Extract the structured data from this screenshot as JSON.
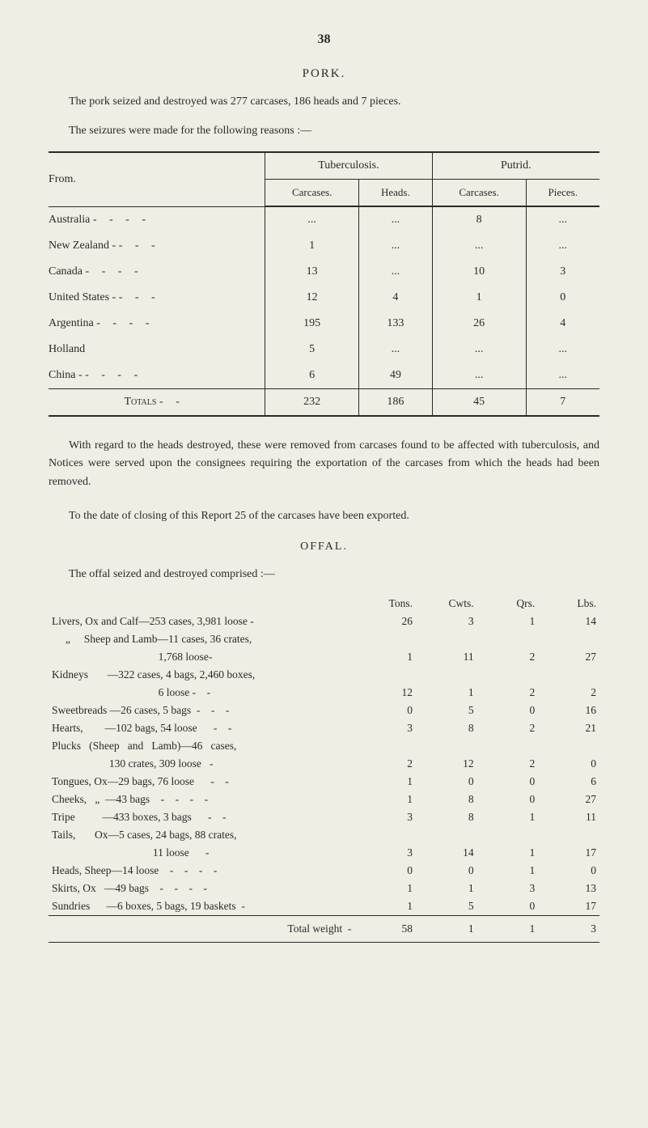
{
  "page_number": "38",
  "section_title": "PORK.",
  "intro_1": "The pork seized and destroyed was 277 carcases, 186 heads and 7 pieces.",
  "intro_2": "The seizures were made for the following reasons :—",
  "seizure_table": {
    "from_label": "From.",
    "group_headers": [
      "Tuberculosis.",
      "Putrid."
    ],
    "sub_headers": [
      "Carcases.",
      "Heads.",
      "Carcases.",
      "Pieces."
    ],
    "rows": [
      {
        "from": "Australia",
        "dashes": "-   -   -   -",
        "tb_c": "...",
        "tb_h": "...",
        "p_c": "8",
        "p_p": "..."
      },
      {
        "from": "New Zealand -",
        "dashes": "-   -   -",
        "tb_c": "1",
        "tb_h": "...",
        "p_c": "...",
        "p_p": "..."
      },
      {
        "from": "Canada",
        "dashes": "-   -   -   -",
        "tb_c": "13",
        "tb_h": "...",
        "p_c": "10",
        "p_p": "3"
      },
      {
        "from": "United States -",
        "dashes": "-   -   -",
        "tb_c": "12",
        "tb_h": "4",
        "p_c": "1",
        "p_p": "0"
      },
      {
        "from": "Argentina",
        "dashes": "-   -   -   -",
        "tb_c": "195",
        "tb_h": "133",
        "p_c": "26",
        "p_p": "4"
      },
      {
        "from": "Holland",
        "dashes": "",
        "tb_c": "5",
        "tb_h": "...",
        "p_c": "...",
        "p_p": "..."
      },
      {
        "from": "China -",
        "dashes": "-   -   -   -",
        "tb_c": "6",
        "tb_h": "49",
        "p_c": "...",
        "p_p": "..."
      }
    ],
    "totals_label": "Totals",
    "totals_dashes": "-   -",
    "totals": {
      "tb_c": "232",
      "tb_h": "186",
      "p_c": "45",
      "p_p": "7"
    }
  },
  "body_1": "With regard to the heads destroyed, these were removed from carcases found to be affected with tuberculosis, and Notices were served upon the consignees requiring the exportation of the carcases from which the heads had been removed.",
  "body_2": "To the date of closing of this Report 25 of the carcases have been exported.",
  "offal_title": "OFFAL.",
  "offal_intro": "The offal seized and destroyed comprised :—",
  "offal_headers": [
    "Tons.",
    "Cwts.",
    "Qrs.",
    "Lbs."
  ],
  "offal_rows": [
    {
      "desc": "Livers, Ox and Calf—253 cases, 3,981 loose -",
      "t": "26",
      "c": "3",
      "q": "1",
      "l": "14"
    },
    {
      "desc": "     „     Sheep and Lamb—11 cases, 36 crates,",
      "t": "",
      "c": "",
      "q": "",
      "l": ""
    },
    {
      "desc": "                                       1,768 loose-",
      "t": "1",
      "c": "11",
      "q": "2",
      "l": "27"
    },
    {
      "desc": "Kidneys       —322 cases, 4 bags, 2,460 boxes,",
      "t": "",
      "c": "",
      "q": "",
      "l": ""
    },
    {
      "desc": "                                       6 loose -    -",
      "t": "12",
      "c": "1",
      "q": "2",
      "l": "2"
    },
    {
      "desc": "Sweetbreads —26 cases, 5 bags  -    -    -",
      "t": "0",
      "c": "5",
      "q": "0",
      "l": "16"
    },
    {
      "desc": "Hearts,        —102 bags, 54 loose      -    -",
      "t": "3",
      "c": "8",
      "q": "2",
      "l": "21"
    },
    {
      "desc": "Plucks   (Sheep   and   Lamb)—46   cases,",
      "t": "",
      "c": "",
      "q": "",
      "l": ""
    },
    {
      "desc": "                     130 crates, 309 loose   -",
      "t": "2",
      "c": "12",
      "q": "2",
      "l": "0"
    },
    {
      "desc": "Tongues, Ox—29 bags, 76 loose      -    -",
      "t": "1",
      "c": "0",
      "q": "0",
      "l": "6"
    },
    {
      "desc": "Cheeks,   „  —43 bags    -    -    -    -",
      "t": "1",
      "c": "8",
      "q": "0",
      "l": "27"
    },
    {
      "desc": "Tripe          —433 boxes, 3 bags      -    -",
      "t": "3",
      "c": "8",
      "q": "1",
      "l": "11"
    },
    {
      "desc": "Tails,       Ox—5 cases, 24 bags, 88 crates,",
      "t": "",
      "c": "",
      "q": "",
      "l": ""
    },
    {
      "desc": "                                     11 loose      -",
      "t": "3",
      "c": "14",
      "q": "1",
      "l": "17"
    },
    {
      "desc": "Heads, Sheep—14 loose    -    -    -    -",
      "t": "0",
      "c": "0",
      "q": "1",
      "l": "0"
    },
    {
      "desc": "Skirts, Ox   —49 bags    -    -    -    -",
      "t": "1",
      "c": "1",
      "q": "3",
      "l": "13"
    },
    {
      "desc": "Sundries      —6 boxes, 5 bags, 19 baskets  -",
      "t": "1",
      "c": "5",
      "q": "0",
      "l": "17"
    }
  ],
  "total_weight_label": "Total weight  -",
  "total_weight": {
    "t": "58",
    "c": "1",
    "q": "1",
    "l": "3"
  }
}
